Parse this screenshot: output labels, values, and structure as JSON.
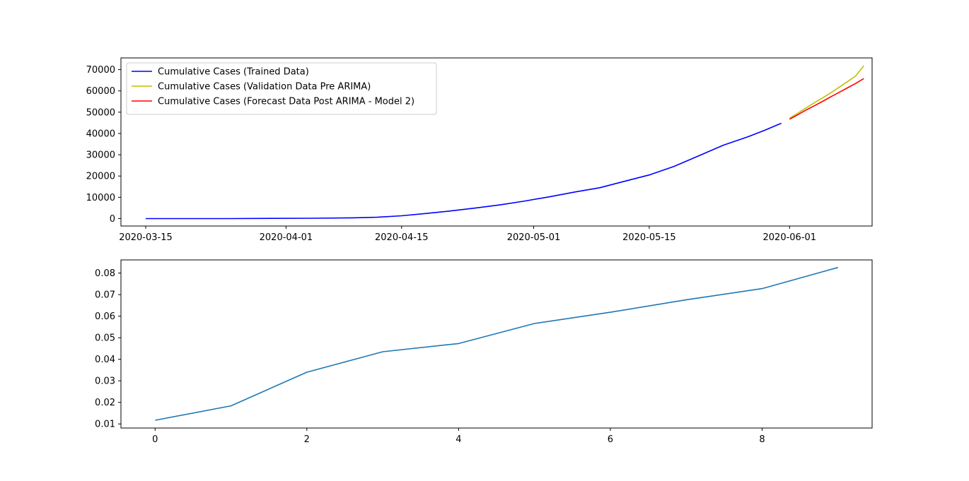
{
  "chart_data": [
    {
      "type": "line",
      "title": "",
      "xlabel": "",
      "ylabel": "",
      "x_axis_type": "date",
      "xlim": [
        "2020-03-12",
        "2020-06-11"
      ],
      "ylim": [
        -3500,
        75500
      ],
      "x_ticks": [
        "2020-03-15",
        "2020-04-01",
        "2020-04-15",
        "2020-05-01",
        "2020-05-15",
        "2020-06-01"
      ],
      "y_ticks": [
        0,
        10000,
        20000,
        30000,
        40000,
        50000,
        60000,
        70000
      ],
      "grid": false,
      "legend_position": "upper-left",
      "series": [
        {
          "name": "Cumulative Cases (Trained Data)",
          "color": "#0000ff",
          "x": [
            "2020-03-15",
            "2020-03-20",
            "2020-03-25",
            "2020-03-30",
            "2020-04-04",
            "2020-04-09",
            "2020-04-12",
            "2020-04-15",
            "2020-04-18",
            "2020-04-21",
            "2020-04-24",
            "2020-04-27",
            "2020-04-30",
            "2020-05-03",
            "2020-05-06",
            "2020-05-09",
            "2020-05-12",
            "2020-05-15",
            "2020-05-18",
            "2020-05-21",
            "2020-05-24",
            "2020-05-27",
            "2020-05-29",
            "2020-05-31"
          ],
          "y": [
            0,
            0,
            0,
            100,
            150,
            350,
            600,
            1300,
            2400,
            3600,
            5000,
            6500,
            8300,
            10300,
            12500,
            14500,
            17500,
            20500,
            24500,
            29500,
            34500,
            38500,
            41500,
            44800
          ]
        },
        {
          "name": "Cumulative Cases (Validation Data Pre ARIMA)",
          "color": "#bfbf00",
          "x": [
            "2020-06-01",
            "2020-06-02",
            "2020-06-03",
            "2020-06-04",
            "2020-06-05",
            "2020-06-06",
            "2020-06-07",
            "2020-06-08",
            "2020-06-09",
            "2020-06-10"
          ],
          "y": [
            47200,
            49500,
            52000,
            54400,
            56700,
            59100,
            61700,
            64300,
            67000,
            71800
          ]
        },
        {
          "name": "Cumulative Cases (Forecast Data Post ARIMA - Model 2)",
          "color": "#ff0000",
          "x": [
            "2020-06-01",
            "2020-06-02",
            "2020-06-03",
            "2020-06-04",
            "2020-06-05",
            "2020-06-06",
            "2020-06-07",
            "2020-06-08",
            "2020-06-09",
            "2020-06-10"
          ],
          "y": [
            46700,
            48800,
            51000,
            53000,
            55100,
            57200,
            59300,
            61400,
            63500,
            65800
          ]
        }
      ]
    },
    {
      "type": "line",
      "title": "",
      "xlabel": "",
      "ylabel": "",
      "xlim": [
        -0.45,
        9.45
      ],
      "ylim": [
        0.0081,
        0.0861
      ],
      "x_ticks": [
        0,
        2,
        4,
        6,
        8
      ],
      "y_ticks": [
        0.01,
        0.02,
        0.03,
        0.04,
        0.05,
        0.06,
        0.07,
        0.08
      ],
      "y_tick_labels": [
        "0.01",
        "0.02",
        "0.03",
        "0.04",
        "0.05",
        "0.06",
        "0.07",
        "0.08"
      ],
      "grid": false,
      "series": [
        {
          "color": "#1f77b4",
          "x": [
            0,
            1,
            2,
            3,
            4,
            5,
            6,
            7,
            8,
            9
          ],
          "y": [
            0.0117,
            0.0184,
            0.034,
            0.0435,
            0.0473,
            0.0566,
            0.0618,
            0.0676,
            0.0728,
            0.0826
          ]
        }
      ]
    }
  ]
}
